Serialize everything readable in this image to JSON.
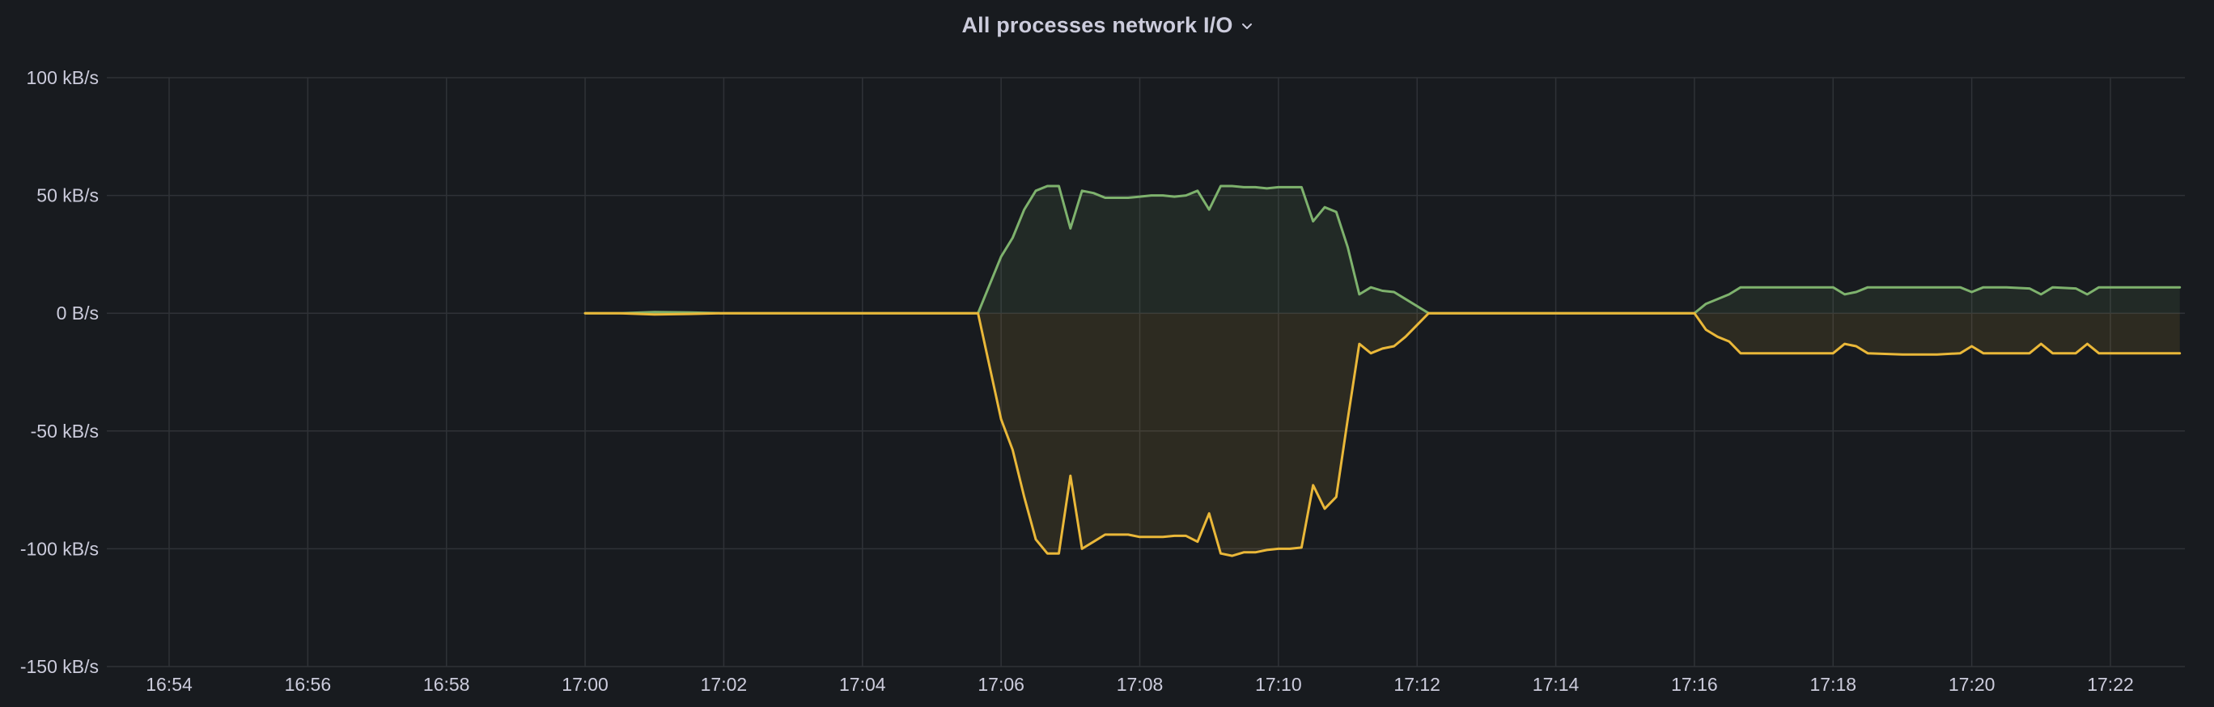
{
  "panel": {
    "title": "All processes network I/O"
  },
  "chart_data": {
    "type": "line",
    "title": "All processes network I/O",
    "xlabel": "",
    "ylabel": "",
    "grid": true,
    "legend": "none",
    "x_ticks": [
      "16:54",
      "16:56",
      "16:58",
      "17:00",
      "17:02",
      "17:04",
      "17:06",
      "17:08",
      "17:10",
      "17:12",
      "17:14",
      "17:16",
      "17:18",
      "17:20",
      "17:22"
    ],
    "y_ticks": [
      {
        "value": 100,
        "label": "100 kB/s"
      },
      {
        "value": 50,
        "label": "50 kB/s"
      },
      {
        "value": 0,
        "label": "0 B/s"
      },
      {
        "value": -50,
        "label": "-50 kB/s"
      },
      {
        "value": -100,
        "label": "-100 kB/s"
      },
      {
        "value": -150,
        "label": "-150 kB/s"
      }
    ],
    "xlim": [
      "16:53:05",
      "17:23:00"
    ],
    "ylim": [
      -150,
      100
    ],
    "unit": "kB/s",
    "series": [
      {
        "color": "#7eb26d",
        "fill": true,
        "points": [
          [
            "17:00:00",
            0
          ],
          [
            "17:00:30",
            0
          ],
          [
            "17:01:00",
            0.5
          ],
          [
            "17:01:30",
            0.3
          ],
          [
            "17:02:00",
            0
          ],
          [
            "17:05:40",
            0
          ],
          [
            "17:06:00",
            24
          ],
          [
            "17:06:10",
            32
          ],
          [
            "17:06:20",
            44
          ],
          [
            "17:06:30",
            52
          ],
          [
            "17:06:40",
            54
          ],
          [
            "17:06:50",
            54
          ],
          [
            "17:07:00",
            36
          ],
          [
            "17:07:10",
            52
          ],
          [
            "17:07:20",
            51
          ],
          [
            "17:07:30",
            49
          ],
          [
            "17:07:40",
            49
          ],
          [
            "17:07:50",
            49
          ],
          [
            "17:08:00",
            49.5
          ],
          [
            "17:08:10",
            50
          ],
          [
            "17:08:20",
            50
          ],
          [
            "17:08:30",
            49.5
          ],
          [
            "17:08:40",
            50
          ],
          [
            "17:08:50",
            52
          ],
          [
            "17:09:00",
            44
          ],
          [
            "17:09:10",
            54
          ],
          [
            "17:09:20",
            54
          ],
          [
            "17:09:30",
            53.5
          ],
          [
            "17:09:40",
            53.5
          ],
          [
            "17:09:50",
            53
          ],
          [
            "17:10:00",
            53.5
          ],
          [
            "17:10:10",
            53.5
          ],
          [
            "17:10:20",
            53.5
          ],
          [
            "17:10:30",
            39
          ],
          [
            "17:10:40",
            45
          ],
          [
            "17:10:50",
            43
          ],
          [
            "17:11:00",
            28
          ],
          [
            "17:11:10",
            8
          ],
          [
            "17:11:20",
            11
          ],
          [
            "17:11:30",
            9.5
          ],
          [
            "17:11:40",
            9
          ],
          [
            "17:11:50",
            6
          ],
          [
            "17:12:10",
            0
          ],
          [
            "17:16:00",
            0
          ],
          [
            "17:16:10",
            4
          ],
          [
            "17:16:20",
            6
          ],
          [
            "17:16:30",
            8
          ],
          [
            "17:16:40",
            11
          ],
          [
            "17:17:00",
            11
          ],
          [
            "17:17:30",
            11
          ],
          [
            "17:18:00",
            11
          ],
          [
            "17:18:10",
            8
          ],
          [
            "17:18:20",
            9
          ],
          [
            "17:18:30",
            11
          ],
          [
            "17:19:00",
            11
          ],
          [
            "17:19:30",
            11
          ],
          [
            "17:19:50",
            11
          ],
          [
            "17:20:00",
            9
          ],
          [
            "17:20:10",
            11
          ],
          [
            "17:20:30",
            11
          ],
          [
            "17:20:50",
            10.5
          ],
          [
            "17:21:00",
            8
          ],
          [
            "17:21:10",
            11
          ],
          [
            "17:21:30",
            10.5
          ],
          [
            "17:21:40",
            8
          ],
          [
            "17:21:50",
            11
          ],
          [
            "17:22:10",
            11
          ],
          [
            "17:22:30",
            11
          ],
          [
            "17:23:00",
            11
          ]
        ]
      },
      {
        "color": "#eab839",
        "fill": true,
        "points": [
          [
            "17:00:00",
            0
          ],
          [
            "17:00:30",
            0
          ],
          [
            "17:01:00",
            -0.5
          ],
          [
            "17:01:30",
            -0.3
          ],
          [
            "17:02:00",
            0
          ],
          [
            "17:05:40",
            0
          ],
          [
            "17:06:00",
            -45
          ],
          [
            "17:06:10",
            -58
          ],
          [
            "17:06:20",
            -78
          ],
          [
            "17:06:30",
            -96
          ],
          [
            "17:06:40",
            -102
          ],
          [
            "17:06:50",
            -102
          ],
          [
            "17:07:00",
            -69
          ],
          [
            "17:07:10",
            -100
          ],
          [
            "17:07:20",
            -97
          ],
          [
            "17:07:30",
            -94
          ],
          [
            "17:07:40",
            -94
          ],
          [
            "17:07:50",
            -94
          ],
          [
            "17:08:00",
            -95
          ],
          [
            "17:08:10",
            -95
          ],
          [
            "17:08:20",
            -95
          ],
          [
            "17:08:30",
            -94.5
          ],
          [
            "17:08:40",
            -94.5
          ],
          [
            "17:08:50",
            -97
          ],
          [
            "17:09:00",
            -85
          ],
          [
            "17:09:10",
            -102
          ],
          [
            "17:09:20",
            -103
          ],
          [
            "17:09:30",
            -101.5
          ],
          [
            "17:09:40",
            -101.5
          ],
          [
            "17:09:50",
            -100.5
          ],
          [
            "17:10:00",
            -100
          ],
          [
            "17:10:10",
            -100
          ],
          [
            "17:10:20",
            -99.5
          ],
          [
            "17:10:30",
            -73
          ],
          [
            "17:10:40",
            -83
          ],
          [
            "17:10:50",
            -78
          ],
          [
            "17:11:00",
            -45
          ],
          [
            "17:11:10",
            -13
          ],
          [
            "17:11:20",
            -17
          ],
          [
            "17:11:30",
            -15
          ],
          [
            "17:11:40",
            -14
          ],
          [
            "17:11:50",
            -10
          ],
          [
            "17:12:10",
            0
          ],
          [
            "17:16:00",
            0
          ],
          [
            "17:16:10",
            -7
          ],
          [
            "17:16:20",
            -10
          ],
          [
            "17:16:30",
            -12
          ],
          [
            "17:16:40",
            -17
          ],
          [
            "17:17:00",
            -17
          ],
          [
            "17:17:30",
            -17
          ],
          [
            "17:18:00",
            -17
          ],
          [
            "17:18:10",
            -13
          ],
          [
            "17:18:20",
            -14
          ],
          [
            "17:18:30",
            -17
          ],
          [
            "17:19:00",
            -17.5
          ],
          [
            "17:19:30",
            -17.5
          ],
          [
            "17:19:50",
            -17
          ],
          [
            "17:20:00",
            -14
          ],
          [
            "17:20:10",
            -17
          ],
          [
            "17:20:30",
            -17
          ],
          [
            "17:20:50",
            -17
          ],
          [
            "17:21:00",
            -13
          ],
          [
            "17:21:10",
            -17
          ],
          [
            "17:21:30",
            -17
          ],
          [
            "17:21:40",
            -13
          ],
          [
            "17:21:50",
            -17
          ],
          [
            "17:22:10",
            -17
          ],
          [
            "17:22:30",
            -17
          ],
          [
            "17:23:00",
            -17
          ]
        ]
      }
    ]
  }
}
